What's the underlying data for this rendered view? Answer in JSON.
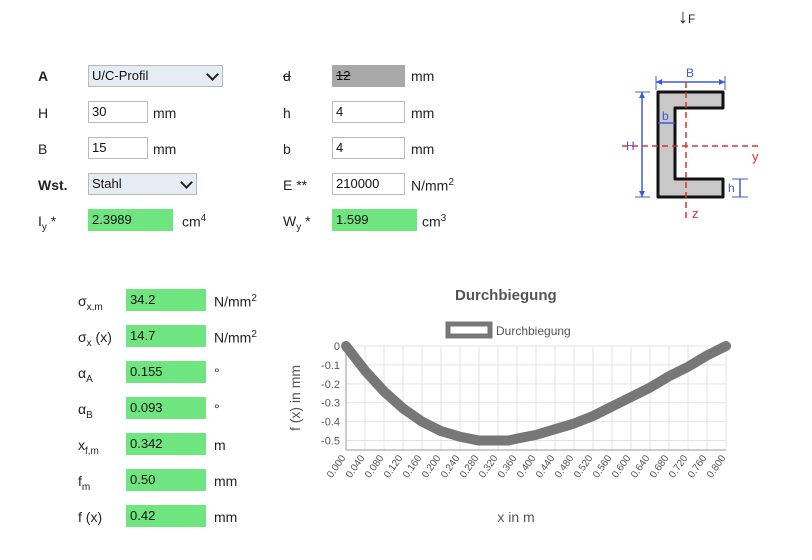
{
  "force": {
    "arrow": "↓",
    "label": "F"
  },
  "top_left": {
    "A": {
      "label": "A",
      "value": "U/C-Profil"
    },
    "H": {
      "label": "H",
      "value": "30",
      "unit": "mm"
    },
    "B": {
      "label": "B",
      "value": "15",
      "unit": "mm"
    },
    "Wst": {
      "label": "Wst.",
      "value": "Stahl"
    },
    "Iy": {
      "label_main": "I",
      "label_sub": "y",
      "label_suffix": " *",
      "value": "2.3989",
      "unit_main": "cm",
      "unit_sup": "4"
    }
  },
  "top_right": {
    "d": {
      "label": "d",
      "value": "12",
      "unit": "mm"
    },
    "h": {
      "label": "h",
      "value": "4",
      "unit": "mm"
    },
    "b": {
      "label": "b",
      "value": "4",
      "unit": "mm"
    },
    "E": {
      "label": "E **",
      "value": "210000",
      "unit_main": "N/mm",
      "unit_sup": "2"
    },
    "Wy": {
      "label_main": "W",
      "label_sub": "y",
      "label_suffix": " *",
      "value": "1.599",
      "unit_main": "cm",
      "unit_sup": "3"
    }
  },
  "results": [
    {
      "sym": "σ",
      "sub": "x,m",
      "suffix": "",
      "value": "34.2",
      "unit_main": "N/mm",
      "unit_sup": "2"
    },
    {
      "sym": "σ",
      "sub": "x",
      "suffix": " (x)",
      "value": "14.7",
      "unit_main": "N/mm",
      "unit_sup": "2"
    },
    {
      "sym": "α",
      "sub": "A",
      "suffix": "",
      "value": "0.155",
      "unit_main": "°",
      "unit_sup": ""
    },
    {
      "sym": "α",
      "sub": "B",
      "suffix": "",
      "value": "0.093",
      "unit_main": "°",
      "unit_sup": ""
    },
    {
      "sym": "x",
      "sub": "f,m",
      "suffix": "",
      "value": "0.342",
      "unit_main": "m",
      "unit_sup": ""
    },
    {
      "sym": "f",
      "sub": "m",
      "suffix": "",
      "value": "0.50",
      "unit_main": "mm",
      "unit_sup": ""
    },
    {
      "sym": "f",
      "sub": "",
      "suffix": " (x)",
      "value": "0.42",
      "unit_main": "mm",
      "unit_sup": ""
    }
  ],
  "profile_diagram": {
    "labels": {
      "B": "B",
      "H": "H",
      "b": "b",
      "h": "h",
      "y": "y",
      "z": "z"
    },
    "colors": {
      "dim": "#3b5bdb",
      "axis": "#e03131",
      "fill": "#c8c8c8",
      "outline": "#111111"
    }
  },
  "chart_data": {
    "type": "line",
    "title": "Durchbiegung",
    "xlabel": "x in m",
    "ylabel": "f (x) in mm",
    "series": [
      {
        "name": "Durchbiegung",
        "color": "#777777",
        "x": [
          0,
          0.04,
          0.08,
          0.12,
          0.16,
          0.2,
          0.24,
          0.28,
          0.32,
          0.342,
          0.36,
          0.4,
          0.44,
          0.48,
          0.52,
          0.56,
          0.6,
          0.64,
          0.68,
          0.72,
          0.76,
          0.8
        ],
        "y": [
          0,
          -0.13,
          -0.24,
          -0.33,
          -0.4,
          -0.45,
          -0.48,
          -0.5,
          -0.5,
          -0.5,
          -0.49,
          -0.47,
          -0.44,
          -0.41,
          -0.37,
          -0.32,
          -0.27,
          -0.22,
          -0.16,
          -0.11,
          -0.05,
          0
        ]
      }
    ],
    "x_ticks": [
      "0.000",
      "0.040",
      "0.080",
      "0.120",
      "0.160",
      "0.200",
      "0.240",
      "0.280",
      "0.320",
      "0.360",
      "0.400",
      "0.440",
      "0.480",
      "0.520",
      "0.560",
      "0.600",
      "0.640",
      "0.680",
      "0.720",
      "0.760",
      "0.800"
    ],
    "y_ticks": [
      "0",
      "-0.1",
      "-0.2",
      "-0.3",
      "-0.4",
      "-0.5"
    ],
    "xlim": [
      0,
      0.8
    ],
    "ylim": [
      -0.55,
      0
    ],
    "grid": true,
    "legend_position": "top"
  }
}
